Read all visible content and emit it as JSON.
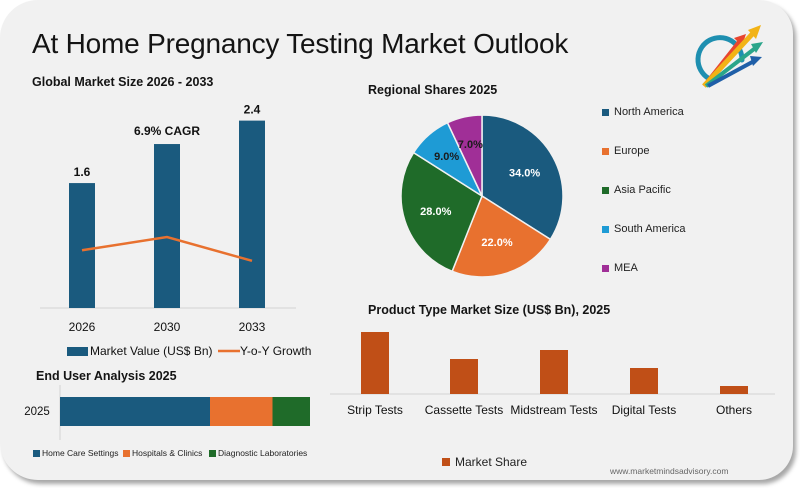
{
  "title": "At Home Pregnancy Testing Market Outlook",
  "logo": {
    "icon": "rising-arrows-logo-icon"
  },
  "footer": {
    "url": "www.marketmindsadvisory.com"
  },
  "colors": {
    "navy": "#1a5a7e",
    "orange": "#e8712f",
    "green": "#1f6b29",
    "sky": "#1e9bd5",
    "purple": "#a02f97",
    "rust": "#c04f17",
    "background": "#f1f1f1"
  },
  "chart_data": [
    {
      "id": "market-size",
      "type": "bar",
      "title": "Global Market Size 2026 - 2033",
      "categories": [
        "2026",
        "2030",
        "2033"
      ],
      "series": [
        {
          "name": "Market Value (US$ Bn)",
          "values": [
            1.6,
            2.1,
            2.4
          ],
          "labels": [
            "1.6",
            "",
            "2.4"
          ],
          "color": "#1a5a7e"
        },
        {
          "name": "Y-o-Y Growth",
          "type": "line",
          "relative_values": [
            0.55,
            0.6,
            0.51
          ],
          "color": "#e8712f"
        }
      ],
      "annotation": "6.9% CAGR",
      "ylim": [
        0,
        2.6
      ],
      "grid": false,
      "legend_position": "bottom"
    },
    {
      "id": "regional-shares",
      "type": "pie",
      "title": "Regional Shares 2025",
      "slices": [
        {
          "label": "North America",
          "value": 34.0,
          "display": "34.0%",
          "color": "#1a5a7e"
        },
        {
          "label": "Europe",
          "value": 22.0,
          "display": "22.0%",
          "color": "#e8712f"
        },
        {
          "label": "Asia Pacific",
          "value": 28.0,
          "display": "28.0%",
          "color": "#1f6b29"
        },
        {
          "label": "South America",
          "value": 9.0,
          "display": "9.0%",
          "color": "#1e9bd5"
        },
        {
          "label": "MEA",
          "value": 7.0,
          "display": "7.0%",
          "color": "#a02f97"
        }
      ],
      "legend_position": "right"
    },
    {
      "id": "product-type",
      "type": "bar",
      "title": "Product Type Market Size (US$ Bn), 2025",
      "categories": [
        "Strip Tests",
        "Cassette Tests",
        "Midstream Tests",
        "Digital Tests",
        "Others"
      ],
      "series": [
        {
          "name": "Market Share",
          "values": [
            0.62,
            0.35,
            0.44,
            0.26,
            0.08
          ],
          "color": "#c04f17"
        }
      ],
      "ylim": [
        0,
        0.7
      ],
      "grid": false,
      "legend_position": "bottom"
    },
    {
      "id": "end-user",
      "type": "bar",
      "orientation": "horizontal-stacked",
      "title": "End User Analysis 2025",
      "categories": [
        "2025"
      ],
      "series": [
        {
          "name": "Home Care Settings",
          "values": [
            60
          ],
          "color": "#1a5a7e"
        },
        {
          "name": "Hospitals & Clinics",
          "values": [
            25
          ],
          "color": "#e8712f"
        },
        {
          "name": "Diagnostic Laboratories",
          "values": [
            15
          ],
          "color": "#1f6b29"
        }
      ],
      "xlim": [
        0,
        100
      ],
      "legend_position": "bottom"
    }
  ]
}
